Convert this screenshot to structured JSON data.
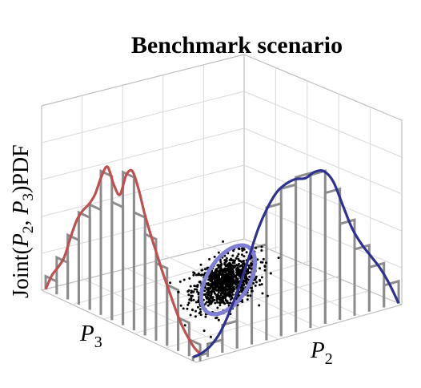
{
  "chart_data": {
    "type": "3d-histogram-scatter",
    "title": "Benchmark scenario",
    "zlabel": {
      "prefix": "Joint(",
      "v1": "P",
      "s1": "2",
      "sep": ", ",
      "v2": "P",
      "s2": "3",
      "suffix": ")PDF"
    },
    "xlabel": {
      "v": "P",
      "s": "2"
    },
    "ylabel": {
      "v": "P",
      "s": "3"
    },
    "colors": {
      "p3_curve": "#c0504d",
      "p2_curve": "#2e3192",
      "ellipse": "#7f7fd5",
      "bars": "#8c8c8c",
      "scatter": "#000000",
      "grid": "#d9d9d9"
    },
    "p3_marginal": {
      "bars": [
        0.07,
        0.2,
        0.35,
        0.5,
        0.57,
        0.78,
        0.64,
        0.83,
        0.64,
        0.55,
        0.42,
        0.33,
        0.18,
        0.09
      ],
      "curve": [
        0.0,
        0.09,
        0.15,
        0.22,
        0.34,
        0.45,
        0.52,
        0.57,
        0.64,
        0.75,
        0.82,
        0.74,
        0.7,
        0.82,
        0.86,
        0.78,
        0.66,
        0.56,
        0.47,
        0.38,
        0.3,
        0.22,
        0.15,
        0.1,
        0.06,
        0.04
      ]
    },
    "p2_marginal": {
      "bars": [
        0.02,
        0.07,
        0.15,
        0.32,
        0.52,
        0.72,
        0.8,
        0.84,
        0.83,
        0.71,
        0.52,
        0.36,
        0.24,
        0.12
      ],
      "curve": [
        0.02,
        0.03,
        0.06,
        0.12,
        0.22,
        0.34,
        0.48,
        0.62,
        0.72,
        0.79,
        0.82,
        0.83,
        0.82,
        0.84,
        0.83,
        0.76,
        0.62,
        0.48,
        0.38,
        0.3,
        0.22,
        0.12,
        0.0
      ]
    },
    "scatter": {
      "n": 950,
      "center": [
        0.5,
        0.5
      ],
      "sd": [
        0.085,
        0.085
      ],
      "rho": 0.55
    }
  }
}
